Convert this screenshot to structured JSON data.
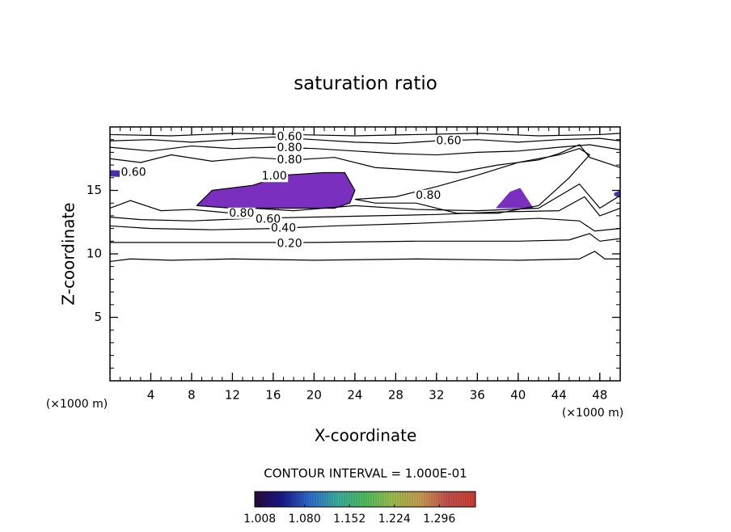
{
  "chart_data": {
    "type": "contour",
    "title": "saturation ratio",
    "xlabel": "X-coordinate",
    "ylabel": "Z-coordinate",
    "x_unit_label": "(×1000 m)",
    "y_unit_label": "(×1000 m)",
    "xlim": [
      0,
      50
    ],
    "ylim": [
      0,
      20
    ],
    "xticks": [
      4,
      8,
      12,
      16,
      20,
      24,
      28,
      32,
      36,
      40,
      44,
      48
    ],
    "yticks": [
      5,
      10,
      15
    ],
    "minor_tick_step": 1,
    "line_color": "#000000",
    "contours": [
      {
        "level": 0.1,
        "x": [
          0,
          2,
          6,
          12,
          20,
          30,
          40,
          46,
          47.5,
          48.5,
          50
        ],
        "z": [
          9.4,
          9.6,
          9.5,
          9.6,
          9.5,
          9.6,
          9.5,
          9.6,
          10.2,
          9.6,
          9.6
        ]
      },
      {
        "level": 0.2,
        "x": [
          0,
          10,
          20,
          30,
          40,
          45,
          47,
          48,
          50
        ],
        "z": [
          10.9,
          10.9,
          10.9,
          11.0,
          11.0,
          11.1,
          11.6,
          11.0,
          11.2
        ]
      },
      {
        "level": 0.4,
        "x": [
          0,
          4,
          10,
          16,
          22,
          30,
          36,
          42,
          46,
          47.5,
          50
        ],
        "z": [
          12.2,
          12.0,
          11.9,
          12.0,
          12.2,
          12.4,
          12.6,
          12.8,
          12.6,
          11.8,
          12.0
        ]
      },
      {
        "level": 0.6,
        "x": [
          0,
          3,
          8,
          14,
          20,
          26,
          32,
          38,
          44,
          46.5,
          48,
          50
        ],
        "z": [
          12.9,
          12.7,
          12.6,
          12.8,
          12.9,
          13.0,
          13.1,
          13.3,
          13.4,
          14.5,
          13.0,
          13.6
        ]
      },
      {
        "level": 0.8,
        "x": [
          0,
          2,
          5,
          8,
          12,
          14,
          18,
          24,
          30,
          36,
          42,
          46,
          48,
          50
        ],
        "z": [
          13.6,
          14.2,
          13.4,
          13.5,
          13.2,
          13.6,
          13.4,
          13.8,
          13.5,
          13.4,
          13.6,
          15.5,
          13.6,
          14.6
        ]
      },
      {
        "level": 0.8,
        "x": [
          0,
          3,
          6,
          10,
          14,
          18,
          22,
          26,
          30,
          34,
          38,
          42,
          44,
          46,
          47,
          50
        ],
        "z": [
          17.5,
          17.2,
          17.8,
          17.3,
          17.6,
          17.4,
          17.6,
          16.8,
          16.6,
          16.4,
          17.0,
          17.4,
          17.9,
          18.6,
          17.6,
          16.8
        ]
      },
      {
        "level": 0.8,
        "x": [
          0,
          4,
          8,
          12,
          16,
          20,
          24,
          28,
          32,
          36,
          40,
          44,
          47,
          50
        ],
        "z": [
          18.4,
          18.1,
          18.5,
          18.3,
          18.4,
          18.3,
          18.1,
          17.9,
          17.8,
          18.0,
          18.1,
          18.4,
          18.6,
          18.2
        ]
      },
      {
        "level": 0.6,
        "x": [
          0,
          4,
          8,
          12,
          16,
          20,
          24,
          28,
          32,
          36,
          40,
          44,
          48,
          50
        ],
        "z": [
          18.9,
          19.0,
          18.8,
          19.0,
          19.2,
          19.0,
          18.8,
          18.7,
          18.9,
          19.0,
          18.8,
          19.0,
          19.1,
          18.9
        ]
      },
      {
        "level": 0.4,
        "x": [
          0,
          6,
          12,
          18,
          24,
          30,
          36,
          42,
          48,
          50
        ],
        "z": [
          19.4,
          19.3,
          19.5,
          19.4,
          19.3,
          19.4,
          19.5,
          19.3,
          19.4,
          19.5
        ]
      },
      {
        "level": 0.8,
        "x": [
          24,
          28,
          32,
          36,
          40,
          44,
          46,
          47,
          45,
          42,
          38,
          34,
          30,
          26,
          24
        ],
        "z": [
          14.3,
          14.5,
          15.3,
          16.2,
          17.2,
          17.8,
          18.3,
          17.8,
          16.0,
          13.8,
          13.2,
          13.2,
          14.0,
          14.0,
          14.3
        ]
      },
      {
        "level": 1.0,
        "x": [
          8.5,
          10,
          14,
          17,
          21,
          23,
          24,
          23.5,
          22,
          16,
          12,
          8.5
        ],
        "z": [
          13.8,
          15.0,
          15.4,
          16.2,
          16.4,
          16.4,
          15.0,
          14.0,
          13.6,
          13.6,
          13.6,
          13.8
        ]
      }
    ],
    "regions": [
      {
        "color": "#7b2fbf",
        "x": [
          8.5,
          10,
          14,
          17,
          21,
          23,
          24,
          23.5,
          22,
          16,
          12,
          8.5
        ],
        "z": [
          13.8,
          15.0,
          15.4,
          16.2,
          16.4,
          16.4,
          15.0,
          14.0,
          13.6,
          13.6,
          13.6,
          13.8
        ]
      },
      {
        "color": "#7b2fbf",
        "x": [
          37.8,
          39.2,
          40.2,
          41.5,
          37.8
        ],
        "z": [
          13.6,
          14.9,
          15.2,
          13.6,
          13.6
        ]
      },
      {
        "color": "#4b2fa8",
        "x": [
          0,
          2.5,
          3,
          0
        ],
        "z": [
          16.1,
          16.0,
          16.5,
          16.6
        ]
      },
      {
        "color": "#4b2fa8",
        "x": [
          49.4,
          50,
          50,
          49.4
        ],
        "z": [
          14.6,
          14.4,
          15.0,
          14.8
        ]
      }
    ],
    "contour_labels": [
      {
        "text": "0.60",
        "x": 17.6,
        "z": 19.2
      },
      {
        "text": "0.80",
        "x": 17.6,
        "z": 18.35
      },
      {
        "text": "0.80",
        "x": 17.6,
        "z": 17.4
      },
      {
        "text": "1.00",
        "x": 16.1,
        "z": 16.1
      },
      {
        "text": "0.60",
        "x": 33.2,
        "z": 18.9
      },
      {
        "text": "0.80",
        "x": 31.2,
        "z": 14.6
      },
      {
        "text": "0.60",
        "x": 2.3,
        "z": 16.4
      },
      {
        "text": "0.80",
        "x": 12.9,
        "z": 13.2
      },
      {
        "text": "0.60",
        "x": 15.5,
        "z": 12.7
      },
      {
        "text": "0.40",
        "x": 17.0,
        "z": 12.0
      },
      {
        "text": "0.20",
        "x": 17.6,
        "z": 10.8
      }
    ],
    "contour_interval_label": "CONTOUR INTERVAL = 1.000E-01",
    "colorbar": {
      "clim": [
        1.0,
        1.354
      ],
      "colors": [
        "#2a0a3a",
        "#1a1a8c",
        "#2f6fd0",
        "#3fb0a0",
        "#4fc060",
        "#a0c050",
        "#c8a050",
        "#c85050",
        "#d04030"
      ],
      "ticks": [
        1.008,
        {
          "value": 1.08,
          "label": "1.080"
        },
        1.152,
        1.224,
        1.296
      ]
    }
  }
}
